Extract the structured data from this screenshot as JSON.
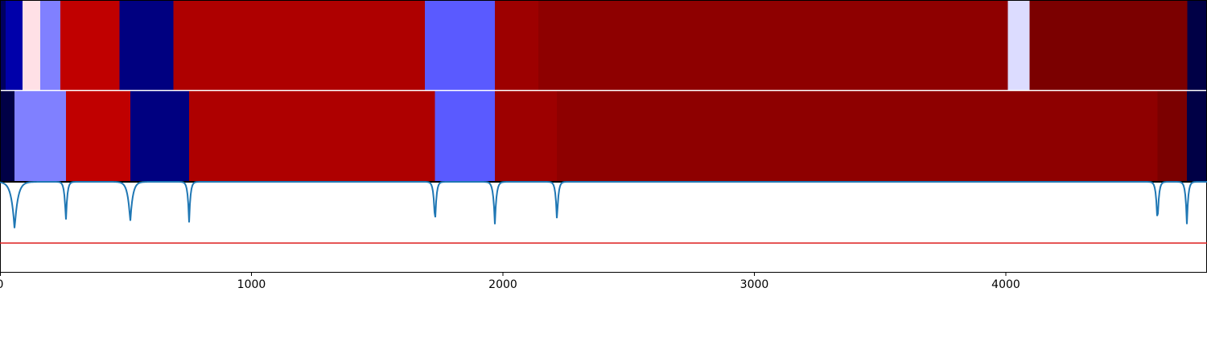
{
  "colors": {
    "line": "#1f77b4",
    "threshold": "#dd1f1f",
    "axis": "#000000",
    "divider": "#ffffff"
  },
  "chart_data": {
    "type": "heatmap",
    "xlim": [
      0,
      4800
    ],
    "x_ticks": [
      0,
      1000,
      2000,
      3000,
      4000
    ],
    "x_tick_labels": [
      "0",
      "1000",
      "2000",
      "3000",
      "4000"
    ],
    "segment_rows": [
      {
        "segments": [
          {
            "start": 0,
            "end": 22,
            "color": "#000060"
          },
          {
            "start": 22,
            "end": 90,
            "color": "#0000aa"
          },
          {
            "start": 90,
            "end": 160,
            "color": "#ffe0e6"
          },
          {
            "start": 160,
            "end": 240,
            "color": "#8080ff"
          },
          {
            "start": 240,
            "end": 475,
            "color": "#c00000"
          },
          {
            "start": 475,
            "end": 690,
            "color": "#000080"
          },
          {
            "start": 690,
            "end": 1690,
            "color": "#ae0000"
          },
          {
            "start": 1690,
            "end": 1968,
            "color": "#5a5aff"
          },
          {
            "start": 1968,
            "end": 2140,
            "color": "#9d0000"
          },
          {
            "start": 2140,
            "end": 4008,
            "color": "#8e0000"
          },
          {
            "start": 4008,
            "end": 4095,
            "color": "#dcdcff"
          },
          {
            "start": 4095,
            "end": 4722,
            "color": "#7b0000"
          },
          {
            "start": 4722,
            "end": 4800,
            "color": "#000046"
          }
        ]
      },
      {
        "segments": [
          {
            "start": 0,
            "end": 58,
            "color": "#000046"
          },
          {
            "start": 58,
            "end": 262,
            "color": "#8080ff"
          },
          {
            "start": 262,
            "end": 518,
            "color": "#c00000"
          },
          {
            "start": 518,
            "end": 752,
            "color": "#000080"
          },
          {
            "start": 752,
            "end": 1730,
            "color": "#ae0000"
          },
          {
            "start": 1730,
            "end": 1968,
            "color": "#5a5aff"
          },
          {
            "start": 1968,
            "end": 2215,
            "color": "#9d0000"
          },
          {
            "start": 2215,
            "end": 4603,
            "color": "#8e0000"
          },
          {
            "start": 4603,
            "end": 4720,
            "color": "#7b0000"
          },
          {
            "start": 4720,
            "end": 4800,
            "color": "#000046"
          }
        ]
      }
    ],
    "line_series": {
      "ylim": [
        0,
        1
      ],
      "threshold": 0.32,
      "baseline": 1.0,
      "dips": [
        {
          "x": 58,
          "depth": 0.53,
          "width": 28
        },
        {
          "x": 262,
          "depth": 0.45,
          "width": 12
        },
        {
          "x": 518,
          "depth": 0.45,
          "width": 22
        },
        {
          "x": 752,
          "depth": 0.45,
          "width": 12
        },
        {
          "x": 1730,
          "depth": 0.49,
          "width": 12
        },
        {
          "x": 1968,
          "depth": 0.47,
          "width": 14
        },
        {
          "x": 2215,
          "depth": 0.45,
          "width": 12
        },
        {
          "x": 4603,
          "depth": 0.49,
          "width": 12
        },
        {
          "x": 4720,
          "depth": 0.47,
          "width": 12
        }
      ]
    }
  }
}
